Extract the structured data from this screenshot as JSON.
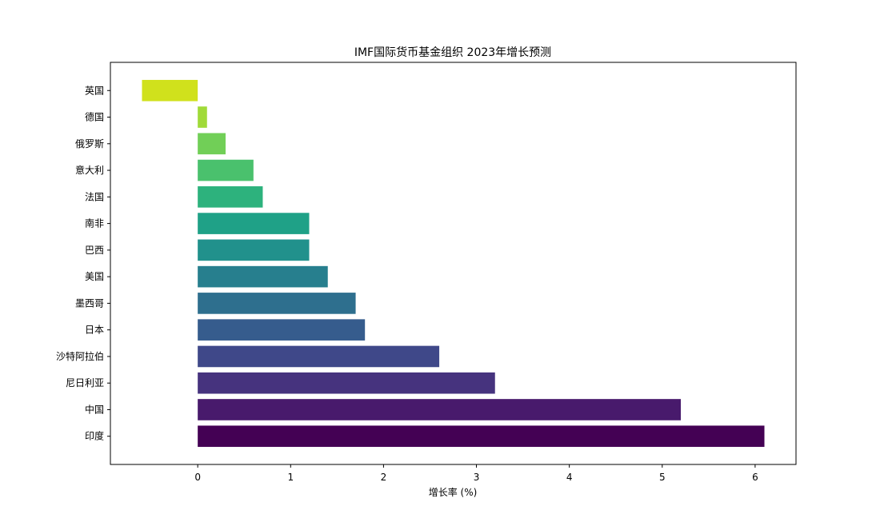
{
  "chart_data": {
    "type": "bar",
    "orientation": "horizontal",
    "title": "IMF国际货币基金组织 2023年增长预测",
    "xlabel": "增长率 (%)",
    "ylabel": "",
    "categories": [
      "印度",
      "中国",
      "尼日利亚",
      "沙特阿拉伯",
      "日本",
      "墨西哥",
      "美国",
      "巴西",
      "南非",
      "法国",
      "意大利",
      "俄罗斯",
      "德国",
      "英国"
    ],
    "values": [
      6.1,
      5.2,
      3.2,
      2.6,
      1.8,
      1.7,
      1.4,
      1.2,
      1.2,
      0.7,
      0.6,
      0.3,
      0.1,
      -0.6
    ],
    "colors": [
      "#440154",
      "#481a6c",
      "#46337e",
      "#3f4889",
      "#365c8d",
      "#2e6f8e",
      "#277f8e",
      "#21918c",
      "#1fa187",
      "#2db27d",
      "#4ac16d",
      "#71cf57",
      "#a0da39",
      "#d0e11c",
      "#fde725"
    ],
    "xticks": [
      0,
      1,
      2,
      3,
      4,
      5,
      6
    ],
    "xlim": [
      -0.94,
      6.44
    ],
    "grid": false,
    "legend": "none"
  }
}
